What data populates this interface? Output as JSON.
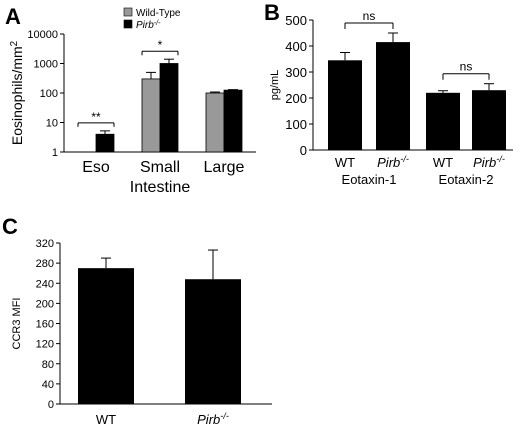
{
  "colors": {
    "wild_type": "#999999",
    "pirb": "#000000",
    "bar": "#000000"
  },
  "chart_data": [
    {
      "panel": "A",
      "type": "bar",
      "ylabel_text": "Eosinophils/mm",
      "ylabel_sup": "2",
      "yscale": "log",
      "ylim": [
        1,
        10000
      ],
      "y_tick_labels": [
        "1",
        "10",
        "100",
        "1000",
        "10000"
      ],
      "categories": [
        {
          "line1": "Eso",
          "line2": ""
        },
        {
          "line1": "Small",
          "line2": "Intestine"
        },
        {
          "line1": "Large",
          "line2": ""
        }
      ],
      "series": [
        {
          "name": "Wild-Type",
          "values": [
            null,
            300,
            100
          ],
          "errors": [
            null,
            200,
            8
          ]
        },
        {
          "name_base": "Pirb",
          "name_sup": "-/-",
          "values": [
            4,
            1000,
            125
          ],
          "errors": [
            1.2,
            400,
            5
          ]
        }
      ],
      "significance": [
        {
          "category": 0,
          "label": "**"
        },
        {
          "category": 1,
          "label": "*"
        }
      ],
      "legend_position": "top-left"
    },
    {
      "panel": "B",
      "type": "bar",
      "ylabel": "pg/mL",
      "ylim": [
        0,
        500
      ],
      "y_ticks": [
        0,
        100,
        200,
        300,
        400,
        500
      ],
      "bars": [
        {
          "label_base": "WT",
          "label_sup": "",
          "italic": false,
          "value": 345,
          "error": 30
        },
        {
          "label_base": "Pirb",
          "label_sup": "-/-",
          "italic": true,
          "value": 415,
          "error": 35
        },
        {
          "label_base": "WT",
          "label_sup": "",
          "italic": false,
          "value": 220,
          "error": 8
        },
        {
          "label_base": "Pirb",
          "label_sup": "-/-",
          "italic": true,
          "value": 230,
          "error": 25
        }
      ],
      "groups": [
        "Eotaxin-1",
        "Eotaxin-2"
      ],
      "significance": [
        {
          "group": 0,
          "label": "ns"
        },
        {
          "group": 1,
          "label": "ns"
        }
      ]
    },
    {
      "panel": "C",
      "type": "bar",
      "ylabel": "CCR3 MFI",
      "ylim": [
        0,
        320
      ],
      "y_ticks": [
        0,
        40,
        80,
        120,
        160,
        200,
        240,
        280,
        320
      ],
      "bars": [
        {
          "label_base": "WT",
          "label_sup": "",
          "italic": false,
          "value": 270,
          "error": 20
        },
        {
          "label_base": "Pirb",
          "label_sup": "-/-",
          "italic": true,
          "value": 248,
          "error": 58
        }
      ]
    }
  ]
}
